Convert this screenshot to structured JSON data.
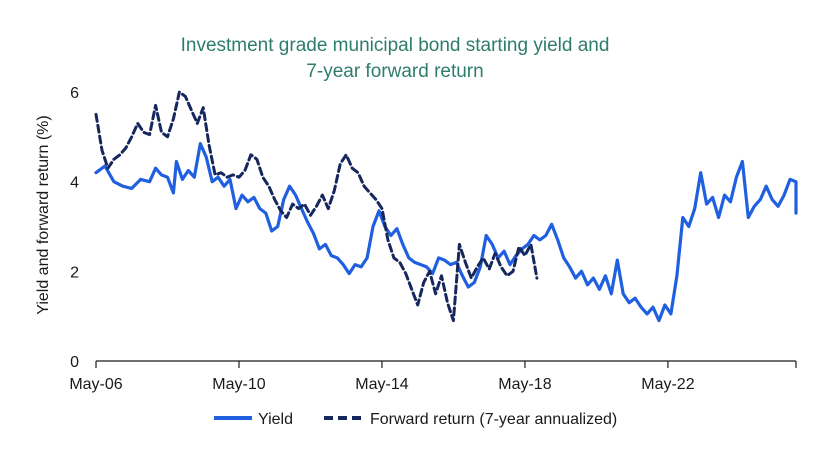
{
  "chart_data": {
    "type": "line",
    "title": [
      "Investment grade municipal bond starting yield and",
      "7-year forward return"
    ],
    "xlabel": "",
    "ylabel": "Yield and forward return (%)",
    "ylim": [
      0,
      6
    ],
    "yticks": [
      0,
      2,
      4,
      6
    ],
    "xlim": [
      "2006-05",
      "2025-12"
    ],
    "xticks": [
      "2006-05",
      "2010-05",
      "2014-05",
      "2018-05",
      "2022-05"
    ],
    "xtick_labels": [
      "May-06",
      "May-10",
      "May-14",
      "May-18",
      "May-22"
    ],
    "grid": false,
    "legend_position": "bottom",
    "series": [
      {
        "name": "Yield",
        "color": "#1f5fe0",
        "style": "solid",
        "points": [
          [
            "2006-05",
            4.2
          ],
          [
            "2006-08",
            4.35
          ],
          [
            "2006-11",
            4.0
          ],
          [
            "2007-02",
            3.9
          ],
          [
            "2007-05",
            3.85
          ],
          [
            "2007-08",
            4.05
          ],
          [
            "2007-11",
            4.0
          ],
          [
            "2008-01",
            4.3
          ],
          [
            "2008-03",
            4.15
          ],
          [
            "2008-05",
            4.1
          ],
          [
            "2008-07",
            3.75
          ],
          [
            "2008-08",
            4.45
          ],
          [
            "2008-10",
            4.05
          ],
          [
            "2008-12",
            4.25
          ],
          [
            "2009-02",
            4.1
          ],
          [
            "2009-04",
            4.85
          ],
          [
            "2009-06",
            4.55
          ],
          [
            "2009-08",
            4.0
          ],
          [
            "2009-10",
            4.1
          ],
          [
            "2009-12",
            3.9
          ],
          [
            "2010-02",
            4.05
          ],
          [
            "2010-04",
            3.4
          ],
          [
            "2010-06",
            3.7
          ],
          [
            "2010-08",
            3.55
          ],
          [
            "2010-10",
            3.65
          ],
          [
            "2010-12",
            3.4
          ],
          [
            "2011-02",
            3.3
          ],
          [
            "2011-04",
            2.9
          ],
          [
            "2011-06",
            3.0
          ],
          [
            "2011-08",
            3.6
          ],
          [
            "2011-10",
            3.9
          ],
          [
            "2011-12",
            3.7
          ],
          [
            "2012-02",
            3.4
          ],
          [
            "2012-04",
            3.1
          ],
          [
            "2012-06",
            2.85
          ],
          [
            "2012-08",
            2.5
          ],
          [
            "2012-10",
            2.6
          ],
          [
            "2012-12",
            2.35
          ],
          [
            "2013-02",
            2.3
          ],
          [
            "2013-04",
            2.15
          ],
          [
            "2013-06",
            1.95
          ],
          [
            "2013-08",
            2.15
          ],
          [
            "2013-10",
            2.1
          ],
          [
            "2013-12",
            2.3
          ],
          [
            "2014-02",
            3.0
          ],
          [
            "2014-04",
            3.35
          ],
          [
            "2014-06",
            3.0
          ],
          [
            "2014-08",
            2.8
          ],
          [
            "2014-10",
            2.95
          ],
          [
            "2014-12",
            2.6
          ],
          [
            "2015-02",
            2.3
          ],
          [
            "2015-04",
            2.2
          ],
          [
            "2015-06",
            2.15
          ],
          [
            "2015-08",
            2.1
          ],
          [
            "2015-10",
            1.95
          ],
          [
            "2015-12",
            2.3
          ],
          [
            "2016-02",
            2.25
          ],
          [
            "2016-04",
            2.15
          ],
          [
            "2016-06",
            2.2
          ],
          [
            "2016-08",
            1.9
          ],
          [
            "2016-10",
            1.65
          ],
          [
            "2016-12",
            1.75
          ],
          [
            "2017-02",
            2.1
          ],
          [
            "2017-04",
            2.8
          ],
          [
            "2017-06",
            2.6
          ],
          [
            "2017-08",
            2.3
          ],
          [
            "2017-10",
            2.45
          ],
          [
            "2017-12",
            2.15
          ],
          [
            "2018-02",
            2.35
          ],
          [
            "2018-04",
            2.5
          ],
          [
            "2018-06",
            2.6
          ],
          [
            "2018-08",
            2.8
          ],
          [
            "2018-10",
            2.7
          ],
          [
            "2018-12",
            2.8
          ],
          [
            "2019-02",
            3.05
          ],
          [
            "2019-04",
            2.7
          ],
          [
            "2019-06",
            2.3
          ],
          [
            "2019-08",
            2.1
          ],
          [
            "2019-10",
            1.85
          ],
          [
            "2019-12",
            2.0
          ],
          [
            "2020-02",
            1.7
          ],
          [
            "2020-04",
            1.85
          ],
          [
            "2020-06",
            1.6
          ],
          [
            "2020-08",
            1.9
          ],
          [
            "2020-10",
            1.5
          ],
          [
            "2020-12",
            2.25
          ],
          [
            "2021-02",
            1.5
          ],
          [
            "2021-04",
            1.3
          ],
          [
            "2021-06",
            1.4
          ],
          [
            "2021-08",
            1.2
          ],
          [
            "2021-10",
            1.05
          ],
          [
            "2021-12",
            1.2
          ],
          [
            "2022-02",
            0.9
          ],
          [
            "2022-04",
            1.25
          ],
          [
            "2022-06",
            1.05
          ],
          [
            "2022-08",
            1.9
          ],
          [
            "2022-10",
            3.2
          ],
          [
            "2022-12",
            3.0
          ],
          [
            "2023-02",
            3.4
          ],
          [
            "2023-04",
            4.2
          ],
          [
            "2023-06",
            3.5
          ],
          [
            "2023-08",
            3.65
          ],
          [
            "2023-10",
            3.2
          ],
          [
            "2023-12",
            3.7
          ],
          [
            "2024-02",
            3.55
          ],
          [
            "2024-04",
            4.1
          ],
          [
            "2024-06",
            4.45
          ],
          [
            "2024-08",
            3.2
          ],
          [
            "2024-10",
            3.45
          ],
          [
            "2024-12",
            3.6
          ],
          [
            "2025-02",
            3.9
          ],
          [
            "2025-04",
            3.6
          ],
          [
            "2025-06",
            3.45
          ],
          [
            "2025-08",
            3.7
          ],
          [
            "2025-10",
            4.05
          ],
          [
            "2025-12",
            4.0
          ],
          [
            "2026-02",
            3.6
          ],
          [
            "2026-04",
            3.65
          ],
          [
            "2026-06",
            3.3
          ],
          [
            "2026-07",
            3.75
          ],
          [
            "2026-08",
            3.65
          ]
        ]
      },
      {
        "name": "Forward return (7-year annualized)",
        "color": "#16275e",
        "style": "dashed",
        "points": [
          [
            "2006-05",
            5.5
          ],
          [
            "2006-07",
            4.7
          ],
          [
            "2006-09",
            4.3
          ],
          [
            "2006-11",
            4.5
          ],
          [
            "2007-01",
            4.6
          ],
          [
            "2007-03",
            4.75
          ],
          [
            "2007-05",
            5.0
          ],
          [
            "2007-07",
            5.3
          ],
          [
            "2007-09",
            5.1
          ],
          [
            "2007-11",
            5.05
          ],
          [
            "2008-01",
            5.7
          ],
          [
            "2008-03",
            5.1
          ],
          [
            "2008-05",
            5.0
          ],
          [
            "2008-07",
            5.4
          ],
          [
            "2008-09",
            6.0
          ],
          [
            "2008-11",
            5.9
          ],
          [
            "2009-01",
            5.6
          ],
          [
            "2009-03",
            5.3
          ],
          [
            "2009-05",
            5.65
          ],
          [
            "2009-07",
            4.8
          ],
          [
            "2009-09",
            4.15
          ],
          [
            "2009-11",
            4.2
          ],
          [
            "2010-01",
            4.1
          ],
          [
            "2010-03",
            4.15
          ],
          [
            "2010-05",
            4.1
          ],
          [
            "2010-07",
            4.25
          ],
          [
            "2010-09",
            4.6
          ],
          [
            "2010-11",
            4.5
          ],
          [
            "2011-01",
            4.1
          ],
          [
            "2011-03",
            3.9
          ],
          [
            "2011-05",
            3.6
          ],
          [
            "2011-07",
            3.35
          ],
          [
            "2011-09",
            3.2
          ],
          [
            "2011-11",
            3.5
          ],
          [
            "2012-01",
            3.4
          ],
          [
            "2012-03",
            3.5
          ],
          [
            "2012-05",
            3.25
          ],
          [
            "2012-07",
            3.45
          ],
          [
            "2012-09",
            3.7
          ],
          [
            "2012-11",
            3.4
          ],
          [
            "2013-01",
            3.8
          ],
          [
            "2013-03",
            4.4
          ],
          [
            "2013-05",
            4.6
          ],
          [
            "2013-07",
            4.3
          ],
          [
            "2013-09",
            4.2
          ],
          [
            "2013-11",
            3.9
          ],
          [
            "2014-01",
            3.75
          ],
          [
            "2014-03",
            3.6
          ],
          [
            "2014-05",
            3.4
          ],
          [
            "2014-07",
            2.7
          ],
          [
            "2014-09",
            2.3
          ],
          [
            "2014-11",
            2.2
          ],
          [
            "2015-01",
            1.95
          ],
          [
            "2015-03",
            1.6
          ],
          [
            "2015-05",
            1.25
          ],
          [
            "2015-07",
            1.75
          ],
          [
            "2015-09",
            2.0
          ],
          [
            "2015-11",
            1.5
          ],
          [
            "2016-01",
            1.9
          ],
          [
            "2016-03",
            1.3
          ],
          [
            "2016-05",
            0.9
          ],
          [
            "2016-07",
            2.6
          ],
          [
            "2016-09",
            2.2
          ],
          [
            "2016-11",
            1.85
          ],
          [
            "2017-01",
            2.1
          ],
          [
            "2017-03",
            2.3
          ],
          [
            "2017-05",
            2.05
          ],
          [
            "2017-07",
            2.4
          ],
          [
            "2017-09",
            2.1
          ],
          [
            "2017-11",
            1.9
          ],
          [
            "2018-01",
            2.0
          ],
          [
            "2018-03",
            2.55
          ],
          [
            "2018-05",
            2.35
          ],
          [
            "2018-07",
            2.6
          ],
          [
            "2018-09",
            1.85
          ]
        ]
      }
    ]
  }
}
